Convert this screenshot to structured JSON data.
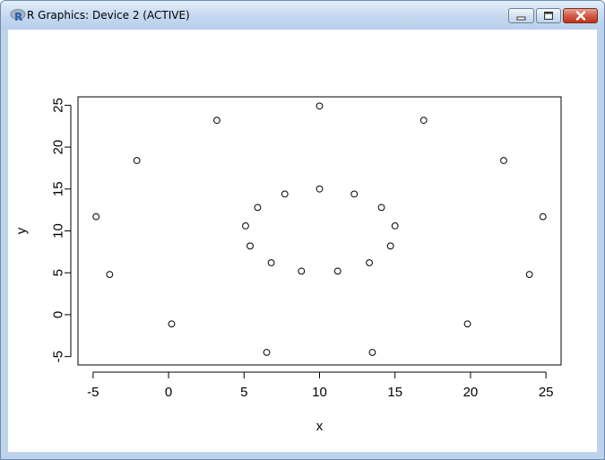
{
  "window": {
    "title": "R Graphics: Device 2 (ACTIVE)",
    "app_icon": "r-logo-icon",
    "controls": [
      "minimize-icon",
      "maximize-icon",
      "close-icon"
    ]
  },
  "chart_data": {
    "type": "scatter",
    "title": "",
    "xlabel": "x",
    "ylabel": "y",
    "xlim": [
      -6,
      26
    ],
    "ylim": [
      -6,
      26
    ],
    "xticks": [
      -5,
      0,
      5,
      10,
      15,
      20,
      25
    ],
    "yticks": [
      -5,
      0,
      5,
      10,
      15,
      20,
      25
    ],
    "xtick_labels": [
      "-5",
      "0",
      "5",
      "10",
      "15",
      "20",
      "25"
    ],
    "ytick_labels": [
      "-5",
      "0",
      "5",
      "10",
      "15",
      "20",
      "25"
    ],
    "marker": "open-circle",
    "grid": false,
    "points": [
      {
        "x": -4.8,
        "y": 11.7
      },
      {
        "x": -3.9,
        "y": 4.8
      },
      {
        "x": -2.1,
        "y": 18.4
      },
      {
        "x": 0.2,
        "y": -1.1
      },
      {
        "x": 3.2,
        "y": 23.2
      },
      {
        "x": 5.1,
        "y": 10.6
      },
      {
        "x": 5.4,
        "y": 8.2
      },
      {
        "x": 5.9,
        "y": 12.8
      },
      {
        "x": 6.5,
        "y": -4.5
      },
      {
        "x": 6.8,
        "y": 6.2
      },
      {
        "x": 7.7,
        "y": 14.4
      },
      {
        "x": 8.8,
        "y": 5.2
      },
      {
        "x": 10.0,
        "y": 15.0
      },
      {
        "x": 10.0,
        "y": 24.9
      },
      {
        "x": 11.2,
        "y": 5.2
      },
      {
        "x": 12.3,
        "y": 14.4
      },
      {
        "x": 13.3,
        "y": 6.2
      },
      {
        "x": 13.5,
        "y": -4.5
      },
      {
        "x": 14.1,
        "y": 12.8
      },
      {
        "x": 14.7,
        "y": 8.2
      },
      {
        "x": 15.0,
        "y": 10.6
      },
      {
        "x": 16.9,
        "y": 23.2
      },
      {
        "x": 19.8,
        "y": -1.1
      },
      {
        "x": 22.2,
        "y": 18.4
      },
      {
        "x": 23.9,
        "y": 4.8
      },
      {
        "x": 24.8,
        "y": 11.7
      }
    ]
  }
}
